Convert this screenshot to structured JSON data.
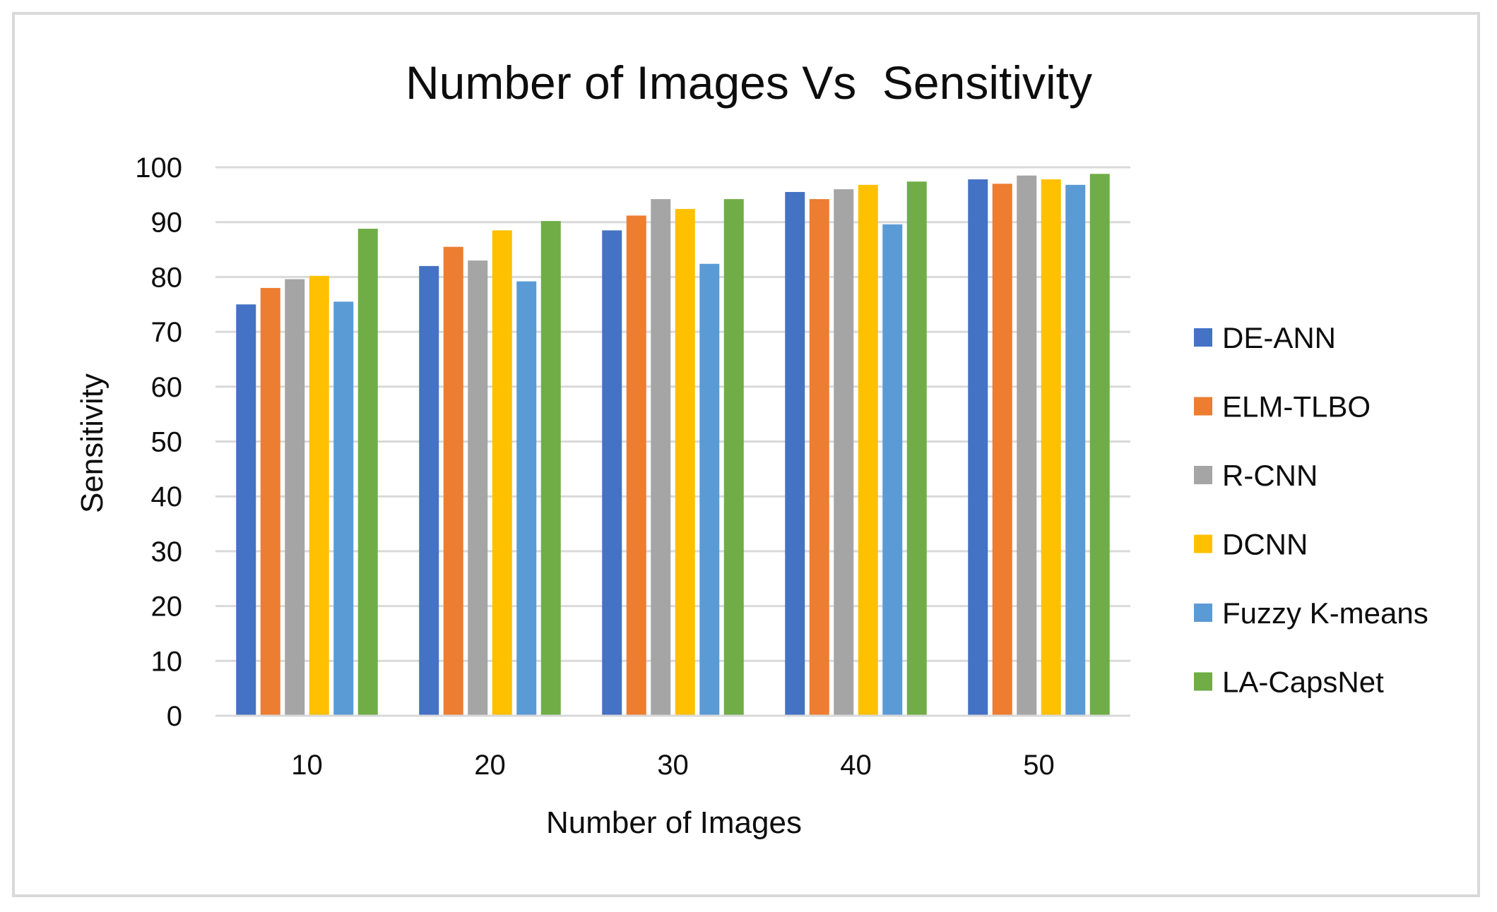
{
  "chart_data": {
    "type": "bar",
    "title": "Number of Images Vs  Sensitivity",
    "xlabel": "Number of Images",
    "ylabel": "Sensitivity",
    "categories": [
      "10",
      "20",
      "30",
      "40",
      "50"
    ],
    "ylim": [
      0,
      100
    ],
    "yticks": [
      "0",
      "10",
      "20",
      "30",
      "40",
      "50",
      "60",
      "70",
      "80",
      "90",
      "100"
    ],
    "grid": true,
    "legend_position": "right",
    "series": [
      {
        "name": "DE-ANN",
        "color": "#4472C4",
        "values": [
          75,
          82,
          88.5,
          95.5,
          97.8
        ]
      },
      {
        "name": "ELM-TLBO",
        "color": "#ED7D31",
        "values": [
          78,
          85.5,
          91.2,
          94.2,
          97
        ]
      },
      {
        "name": "R-CNN",
        "color": "#A5A5A5",
        "values": [
          79.6,
          83,
          94.2,
          96,
          98.5
        ]
      },
      {
        "name": "DCNN",
        "color": "#FFC000",
        "values": [
          80.2,
          88.5,
          92.4,
          96.8,
          97.8
        ]
      },
      {
        "name": "Fuzzy K-means",
        "color": "#5B9BD5",
        "values": [
          75.5,
          79.2,
          82.4,
          89.6,
          96.8
        ]
      },
      {
        "name": "LA-CapsNet",
        "color": "#70AD47",
        "values": [
          88.8,
          90.2,
          94.2,
          97.4,
          98.8
        ]
      }
    ]
  },
  "colors": {
    "gridline": "#d9d9d9",
    "frame": "#d9d9d9",
    "text": "#0d0d0d"
  }
}
